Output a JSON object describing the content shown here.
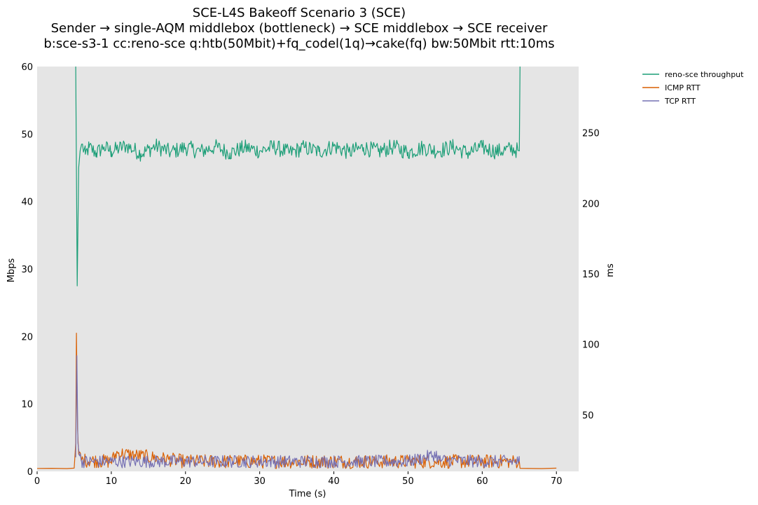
{
  "chart_data": {
    "type": "line",
    "title_lines": [
      "SCE-L4S Bakeoff Scenario 3 (SCE)",
      "Sender → single-AQM middlebox (bottleneck) → SCE middlebox → SCE receiver",
      "b:sce-s3-1 cc:reno-sce q:htb(50Mbit)+fq_codel(1q)→cake(fq) bw:50Mbit rtt:10ms"
    ],
    "xlabel": "Time (s)",
    "ylabel_left": "Mbps",
    "ylabel_right": "ms",
    "xlim": [
      0,
      73
    ],
    "ylim_left": [
      0,
      60
    ],
    "ylim_right": [
      10,
      297
    ],
    "x_ticks": [
      0,
      10,
      20,
      30,
      40,
      50,
      60,
      70
    ],
    "y_ticks_left": [
      0,
      10,
      20,
      30,
      40,
      50,
      60
    ],
    "y_ticks_right": [
      50,
      100,
      150,
      200,
      250
    ],
    "background": "#e5e5e5",
    "grid": false,
    "legend_position": "outside-top-right",
    "series": [
      {
        "name": "reno-sce throughput",
        "axis": "left",
        "color": "#1b9e77",
        "points": [
          [
            5.2,
            60
          ],
          [
            5.4,
            27.5
          ],
          [
            5.6,
            45
          ],
          [
            5.8,
            47.5
          ],
          [
            6.0,
            48.5
          ],
          [
            6.5,
            47
          ],
          [
            7,
            48
          ],
          [
            8,
            47.2
          ],
          [
            9,
            48.1
          ],
          [
            10,
            47.4
          ],
          [
            12,
            48.3
          ],
          [
            14,
            47.1
          ],
          [
            16,
            48.2
          ],
          [
            18,
            47.3
          ],
          [
            20,
            48.0
          ],
          [
            22,
            47.4
          ],
          [
            24,
            48.1
          ],
          [
            26,
            47.2
          ],
          [
            28,
            48.0
          ],
          [
            30,
            47.5
          ],
          [
            32,
            48.1
          ],
          [
            34,
            47.2
          ],
          [
            36,
            48.0
          ],
          [
            38,
            47.4
          ],
          [
            40,
            48.2
          ],
          [
            42,
            47.3
          ],
          [
            44,
            48.0
          ],
          [
            46,
            47.4
          ],
          [
            48,
            48.1
          ],
          [
            50,
            47.3
          ],
          [
            52,
            48.0
          ],
          [
            54,
            47.5
          ],
          [
            56,
            48.1
          ],
          [
            58,
            47.2
          ],
          [
            60,
            48.0
          ],
          [
            62,
            47.4
          ],
          [
            64,
            47.8
          ],
          [
            65.0,
            47.5
          ],
          [
            65.1,
            60
          ]
        ],
        "noise_amplitude": 1.2
      },
      {
        "name": "ICMP RTT",
        "axis": "right",
        "color": "#d95f02",
        "points": [
          [
            0,
            12.1
          ],
          [
            2,
            12.2
          ],
          [
            4,
            12.0
          ],
          [
            5.0,
            12.3
          ],
          [
            5.2,
            30
          ],
          [
            5.3,
            108
          ],
          [
            5.45,
            40
          ],
          [
            5.6,
            22
          ],
          [
            6,
            18
          ],
          [
            10,
            17
          ],
          [
            10.7,
            23
          ],
          [
            20,
            17
          ],
          [
            30,
            17
          ],
          [
            40,
            17
          ],
          [
            50,
            17
          ],
          [
            60,
            17
          ],
          [
            65,
            17
          ],
          [
            65.1,
            12.2
          ],
          [
            68,
            12.0
          ],
          [
            70,
            12.3
          ]
        ],
        "noise_range": [
          5.6,
          65.0
        ],
        "noise_amplitude": 5
      },
      {
        "name": "TCP RTT",
        "axis": "right",
        "color": "#7570b3",
        "points": [
          [
            5.2,
            20
          ],
          [
            5.35,
            92
          ],
          [
            5.5,
            30
          ],
          [
            5.7,
            21
          ],
          [
            6,
            17
          ],
          [
            10,
            17
          ],
          [
            20,
            17
          ],
          [
            30,
            17
          ],
          [
            40,
            17
          ],
          [
            50,
            17
          ],
          [
            53.8,
            22
          ],
          [
            54.2,
            18
          ],
          [
            60,
            17
          ],
          [
            65,
            17
          ]
        ],
        "noise_range": [
          5.7,
          65.0
        ],
        "noise_amplitude": 4.5
      }
    ]
  }
}
